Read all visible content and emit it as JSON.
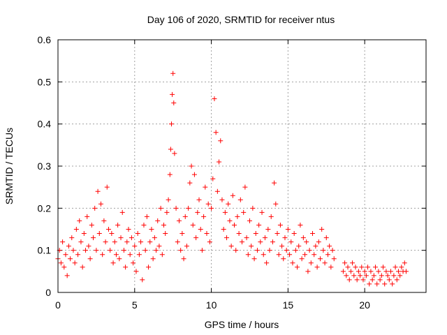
{
  "chart_data": {
    "type": "scatter",
    "title": "Day 106 of 2020, SRMTID for receiver ntus",
    "xlabel": "GPS time / hours",
    "ylabel": "SRMTID / TECUs",
    "xlim": [
      0,
      24
    ],
    "ylim": [
      0,
      0.6
    ],
    "xticks": [
      0,
      5,
      10,
      15,
      20
    ],
    "yticks": [
      0,
      0.1,
      0.2,
      0.3,
      0.4,
      0.5,
      0.6
    ],
    "xtick_labels": [
      "0",
      "5",
      "10",
      "15",
      "20"
    ],
    "ytick_labels": [
      "0",
      "0.1",
      "0.2",
      "0.3",
      "0.4",
      "0.5",
      "0.6"
    ],
    "grid": true,
    "marker": "+",
    "color": "#ff0000",
    "series": [
      {
        "name": "SRMTID",
        "points": [
          [
            0.0,
            0.08
          ],
          [
            0.1,
            0.1
          ],
          [
            0.2,
            0.07
          ],
          [
            0.3,
            0.12
          ],
          [
            0.4,
            0.06
          ],
          [
            0.5,
            0.09
          ],
          [
            0.6,
            0.04
          ],
          [
            0.7,
            0.11
          ],
          [
            0.8,
            0.08
          ],
          [
            0.9,
            0.13
          ],
          [
            1.0,
            0.1
          ],
          [
            1.1,
            0.07
          ],
          [
            1.2,
            0.15
          ],
          [
            1.3,
            0.09
          ],
          [
            1.4,
            0.17
          ],
          [
            1.5,
            0.12
          ],
          [
            1.6,
            0.06
          ],
          [
            1.7,
            0.14
          ],
          [
            1.8,
            0.1
          ],
          [
            1.9,
            0.18
          ],
          [
            2.0,
            0.11
          ],
          [
            2.1,
            0.08
          ],
          [
            2.2,
            0.16
          ],
          [
            2.3,
            0.13
          ],
          [
            2.4,
            0.2
          ],
          [
            2.5,
            0.1
          ],
          [
            2.6,
            0.24
          ],
          [
            2.7,
            0.14
          ],
          [
            2.8,
            0.21
          ],
          [
            2.9,
            0.09
          ],
          [
            3.0,
            0.17
          ],
          [
            3.1,
            0.12
          ],
          [
            3.2,
            0.25
          ],
          [
            3.3,
            0.15
          ],
          [
            3.4,
            0.1
          ],
          [
            3.5,
            0.14
          ],
          [
            3.6,
            0.07
          ],
          [
            3.7,
            0.12
          ],
          [
            3.8,
            0.09
          ],
          [
            3.9,
            0.16
          ],
          [
            4.0,
            0.08
          ],
          [
            4.1,
            0.13
          ],
          [
            4.2,
            0.19
          ],
          [
            4.3,
            0.1
          ],
          [
            4.4,
            0.06
          ],
          [
            4.5,
            0.12
          ],
          [
            4.6,
            0.15
          ],
          [
            4.7,
            0.09
          ],
          [
            4.8,
            0.13
          ],
          [
            4.9,
            0.07
          ],
          [
            5.0,
            0.11
          ],
          [
            5.1,
            0.05
          ],
          [
            5.2,
            0.14
          ],
          [
            5.3,
            0.09
          ],
          [
            5.4,
            0.12
          ],
          [
            5.5,
            0.03
          ],
          [
            5.6,
            0.16
          ],
          [
            5.7,
            0.1
          ],
          [
            5.8,
            0.18
          ],
          [
            5.9,
            0.06
          ],
          [
            6.0,
            0.12
          ],
          [
            6.1,
            0.15
          ],
          [
            6.2,
            0.08
          ],
          [
            6.3,
            0.13
          ],
          [
            6.4,
            0.1
          ],
          [
            6.5,
            0.17
          ],
          [
            6.6,
            0.11
          ],
          [
            6.7,
            0.2
          ],
          [
            6.8,
            0.09
          ],
          [
            6.9,
            0.16
          ],
          [
            7.0,
            0.14
          ],
          [
            7.1,
            0.19
          ],
          [
            7.2,
            0.22
          ],
          [
            7.3,
            0.28
          ],
          [
            7.35,
            0.34
          ],
          [
            7.4,
            0.4
          ],
          [
            7.45,
            0.47
          ],
          [
            7.5,
            0.52
          ],
          [
            7.55,
            0.45
          ],
          [
            7.6,
            0.33
          ],
          [
            7.7,
            0.2
          ],
          [
            7.8,
            0.12
          ],
          [
            7.9,
            0.17
          ],
          [
            8.0,
            0.1
          ],
          [
            8.1,
            0.14
          ],
          [
            8.2,
            0.08
          ],
          [
            8.3,
            0.18
          ],
          [
            8.4,
            0.11
          ],
          [
            8.5,
            0.2
          ],
          [
            8.6,
            0.26
          ],
          [
            8.7,
            0.3
          ],
          [
            8.8,
            0.16
          ],
          [
            8.9,
            0.28
          ],
          [
            9.0,
            0.13
          ],
          [
            9.1,
            0.19
          ],
          [
            9.2,
            0.22
          ],
          [
            9.3,
            0.15
          ],
          [
            9.4,
            0.1
          ],
          [
            9.5,
            0.18
          ],
          [
            9.6,
            0.25
          ],
          [
            9.7,
            0.14
          ],
          [
            9.8,
            0.21
          ],
          [
            9.9,
            0.12
          ],
          [
            10.0,
            0.2
          ],
          [
            10.1,
            0.27
          ],
          [
            10.2,
            0.46
          ],
          [
            10.3,
            0.38
          ],
          [
            10.4,
            0.24
          ],
          [
            10.5,
            0.31
          ],
          [
            10.6,
            0.36
          ],
          [
            10.7,
            0.22
          ],
          [
            10.8,
            0.15
          ],
          [
            10.9,
            0.19
          ],
          [
            11.0,
            0.13
          ],
          [
            11.1,
            0.21
          ],
          [
            11.2,
            0.17
          ],
          [
            11.3,
            0.11
          ],
          [
            11.4,
            0.23
          ],
          [
            11.5,
            0.16
          ],
          [
            11.6,
            0.1
          ],
          [
            11.7,
            0.18
          ],
          [
            11.8,
            0.14
          ],
          [
            11.9,
            0.22
          ],
          [
            12.0,
            0.12
          ],
          [
            12.1,
            0.19
          ],
          [
            12.2,
            0.25
          ],
          [
            12.3,
            0.13
          ],
          [
            12.4,
            0.09
          ],
          [
            12.5,
            0.17
          ],
          [
            12.6,
            0.11
          ],
          [
            12.7,
            0.2
          ],
          [
            12.8,
            0.08
          ],
          [
            12.9,
            0.14
          ],
          [
            13.0,
            0.1
          ],
          [
            13.1,
            0.16
          ],
          [
            13.2,
            0.12
          ],
          [
            13.3,
            0.19
          ],
          [
            13.4,
            0.09
          ],
          [
            13.5,
            0.13
          ],
          [
            13.6,
            0.07
          ],
          [
            13.7,
            0.15
          ],
          [
            13.8,
            0.1
          ],
          [
            13.9,
            0.18
          ],
          [
            14.0,
            0.12
          ],
          [
            14.1,
            0.26
          ],
          [
            14.2,
            0.21
          ],
          [
            14.3,
            0.14
          ],
          [
            14.4,
            0.09
          ],
          [
            14.5,
            0.16
          ],
          [
            14.6,
            0.11
          ],
          [
            14.7,
            0.08
          ],
          [
            14.8,
            0.13
          ],
          [
            14.9,
            0.1
          ],
          [
            15.0,
            0.15
          ],
          [
            15.1,
            0.09
          ],
          [
            15.2,
            0.12
          ],
          [
            15.3,
            0.07
          ],
          [
            15.4,
            0.14
          ],
          [
            15.5,
            0.1
          ],
          [
            15.6,
            0.06
          ],
          [
            15.7,
            0.11
          ],
          [
            15.8,
            0.16
          ],
          [
            15.9,
            0.08
          ],
          [
            16.0,
            0.13
          ],
          [
            16.1,
            0.09
          ],
          [
            16.2,
            0.12
          ],
          [
            16.3,
            0.05
          ],
          [
            16.4,
            0.1
          ],
          [
            16.5,
            0.07
          ],
          [
            16.6,
            0.14
          ],
          [
            16.7,
            0.09
          ],
          [
            16.8,
            0.11
          ],
          [
            16.9,
            0.06
          ],
          [
            17.0,
            0.12
          ],
          [
            17.1,
            0.08
          ],
          [
            17.2,
            0.15
          ],
          [
            17.3,
            0.1
          ],
          [
            17.4,
            0.07
          ],
          [
            17.5,
            0.13
          ],
          [
            17.6,
            0.09
          ],
          [
            17.7,
            0.11
          ],
          [
            17.8,
            0.06
          ],
          [
            17.9,
            0.1
          ],
          [
            18.0,
            0.08
          ],
          [
            18.6,
            0.05
          ],
          [
            18.7,
            0.07
          ],
          [
            18.8,
            0.04
          ],
          [
            18.9,
            0.06
          ],
          [
            19.0,
            0.03
          ],
          [
            19.1,
            0.05
          ],
          [
            19.2,
            0.07
          ],
          [
            19.3,
            0.04
          ],
          [
            19.4,
            0.06
          ],
          [
            19.5,
            0.03
          ],
          [
            19.6,
            0.05
          ],
          [
            19.7,
            0.04
          ],
          [
            19.8,
            0.06
          ],
          [
            19.9,
            0.03
          ],
          [
            20.0,
            0.05
          ],
          [
            20.1,
            0.04
          ],
          [
            20.2,
            0.06
          ],
          [
            20.3,
            0.02
          ],
          [
            20.4,
            0.05
          ],
          [
            20.5,
            0.03
          ],
          [
            20.6,
            0.04
          ],
          [
            20.7,
            0.06
          ],
          [
            20.8,
            0.02
          ],
          [
            20.9,
            0.05
          ],
          [
            21.0,
            0.03
          ],
          [
            21.1,
            0.04
          ],
          [
            21.2,
            0.06
          ],
          [
            21.3,
            0.02
          ],
          [
            21.4,
            0.05
          ],
          [
            21.5,
            0.04
          ],
          [
            21.6,
            0.03
          ],
          [
            21.7,
            0.05
          ],
          [
            21.8,
            0.02
          ],
          [
            21.9,
            0.04
          ],
          [
            22.0,
            0.06
          ],
          [
            22.1,
            0.03
          ],
          [
            22.2,
            0.05
          ],
          [
            22.3,
            0.04
          ],
          [
            22.4,
            0.06
          ],
          [
            22.5,
            0.05
          ],
          [
            22.6,
            0.07
          ],
          [
            22.7,
            0.05
          ]
        ]
      }
    ]
  }
}
